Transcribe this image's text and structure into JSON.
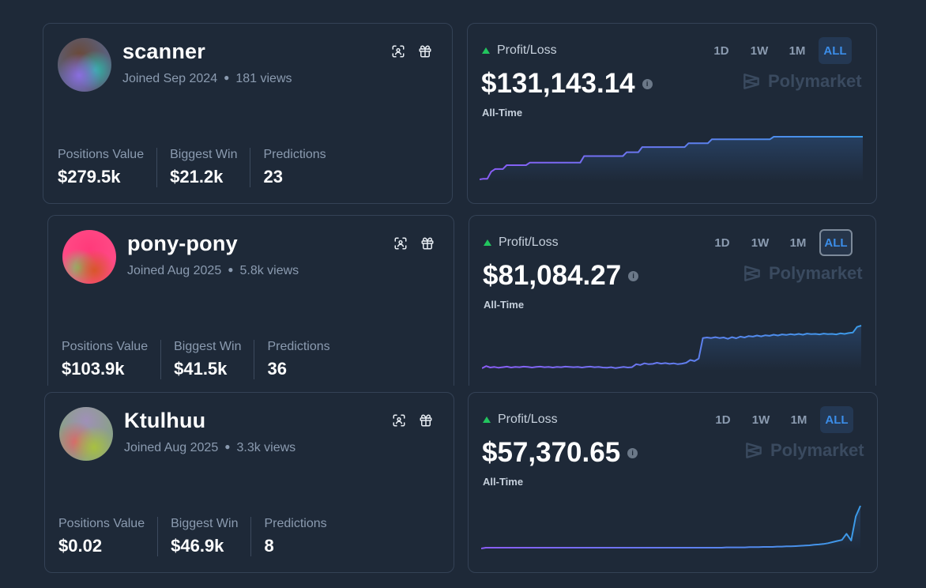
{
  "colors": {
    "background": "#1e2938",
    "card_border": "#344256",
    "muted_text": "#8b9bb0",
    "profit_up": "#22c55e",
    "active_tab": "#3b8de8",
    "line_start": "#8b5cf6",
    "line_end": "#3b9be8"
  },
  "icons": {
    "scan": "qr-scan-icon",
    "gift": "gift-icon",
    "up": "triangle-up-icon",
    "info": "info-icon",
    "brand": "polymarket-logo-icon"
  },
  "profiles": [
    {
      "username": "scanner",
      "joined": "Joined Sep 2024",
      "views": "181 views",
      "stats": [
        {
          "label": "Positions Value",
          "value": "$279.5k"
        },
        {
          "label": "Biggest Win",
          "value": "$21.2k"
        },
        {
          "label": "Predictions",
          "value": "23"
        }
      ],
      "pnl": {
        "label": "Profit/Loss",
        "amount": "$131,143.14",
        "range": "All-Time",
        "brand": "Polymarket",
        "timeframes": [
          "1D",
          "1W",
          "1M",
          "ALL"
        ],
        "active_timeframe": "ALL"
      }
    },
    {
      "username": "pony-pony",
      "joined": "Joined Aug 2025",
      "views": "5.8k views",
      "stats": [
        {
          "label": "Positions Value",
          "value": "$103.9k"
        },
        {
          "label": "Biggest Win",
          "value": "$41.5k"
        },
        {
          "label": "Predictions",
          "value": "36"
        }
      ],
      "pnl": {
        "label": "Profit/Loss",
        "amount": "$81,084.27",
        "range": "All-Time",
        "brand": "Polymarket",
        "timeframes": [
          "1D",
          "1W",
          "1M",
          "ALL"
        ],
        "active_timeframe": "ALL"
      }
    },
    {
      "username": "Ktulhuu",
      "joined": "Joined Aug 2025",
      "views": "3.3k views",
      "stats": [
        {
          "label": "Positions Value",
          "value": "$0.02"
        },
        {
          "label": "Biggest Win",
          "value": "$46.9k"
        },
        {
          "label": "Predictions",
          "value": "8"
        }
      ],
      "pnl": {
        "label": "Profit/Loss",
        "amount": "$57,370.65",
        "range": "All-Time",
        "brand": "Polymarket",
        "timeframes": [
          "1D",
          "1W",
          "1M",
          "ALL"
        ],
        "active_timeframe": "ALL"
      }
    }
  ],
  "chart_data": [
    {
      "type": "line",
      "series": [
        {
          "values": [
            0,
            0.5,
            0.5,
            6,
            8,
            8,
            8,
            11,
            11,
            11,
            11,
            11,
            11,
            13,
            13,
            13,
            13,
            13,
            13,
            13,
            13,
            13,
            13,
            13,
            13,
            13,
            13,
            18,
            18,
            18,
            18,
            18,
            18,
            18,
            18,
            18,
            18,
            18,
            21,
            21,
            21,
            21,
            25,
            25,
            25,
            25,
            25,
            25,
            25,
            25,
            25,
            25,
            25,
            25,
            28,
            28,
            28,
            28,
            28,
            28,
            31,
            31,
            31,
            31,
            31,
            31,
            31,
            31,
            31,
            31,
            31,
            31,
            31,
            31,
            31,
            31,
            33,
            33,
            33,
            33,
            33,
            33,
            33,
            33,
            33,
            33,
            33,
            33,
            33,
            33,
            33,
            33,
            33,
            33,
            33,
            33,
            33,
            33,
            33,
            33
          ]
        }
      ]
    },
    {
      "type": "line",
      "series": [
        {
          "values": [
            0,
            0.8,
            0.3,
            0.5,
            0.2,
            0.4,
            0.6,
            0.3,
            0.5,
            0.4,
            0.6,
            0.5,
            0.3,
            0.5,
            0.6,
            0.4,
            0.5,
            0.3,
            0.5,
            0.4,
            0.6,
            0.5,
            0.4,
            0.5,
            0.3,
            0.5,
            0.6,
            0.4,
            0.5,
            0.3,
            0.2,
            0.4,
            0.1,
            0.3,
            0.5,
            0.3,
            0.4,
            1.5,
            1.2,
            1.8,
            1.5,
            1.6,
            2,
            1.7,
            1.9,
            1.6,
            1.8,
            1.5,
            1.7,
            2,
            3,
            2.6,
            3.5,
            11,
            11.2,
            11,
            11.3,
            11,
            11.2,
            10.7,
            11.3,
            10.9,
            11.5,
            11.2,
            11.7,
            11.5,
            11.9,
            11.6,
            12,
            11.8,
            12.2,
            11.9,
            12.3,
            12.1,
            12.4,
            12.2,
            12.5,
            12.2,
            12.6,
            12.4,
            12.5,
            12.3,
            12.6,
            12.4,
            12.5,
            12.3,
            12.7,
            12.5,
            12.8,
            13,
            15,
            15.5
          ]
        }
      ]
    },
    {
      "type": "line",
      "series": [
        {
          "values": [
            0,
            0.3,
            0.3,
            0.3,
            0.3,
            0.3,
            0.3,
            0.3,
            0.3,
            0.3,
            0.3,
            0.3,
            0.3,
            0.3,
            0.3,
            0.3,
            0.3,
            0.3,
            0.3,
            0.3,
            0.3,
            0.3,
            0.3,
            0.3,
            0.3,
            0.3,
            0.3,
            0.3,
            0.3,
            0.3,
            0.3,
            0.3,
            0.3,
            0.3,
            0.3,
            0.3,
            0.3,
            0.3,
            0.3,
            0.3,
            0.3,
            0.3,
            0.3,
            0.3,
            0.3,
            0.3,
            0.3,
            0.3,
            0.3,
            0.3,
            0.3,
            0.3,
            0.3,
            0.4,
            0.4,
            0.4,
            0.4,
            0.4,
            0.5,
            0.5,
            0.5,
            0.6,
            0.6,
            0.6,
            0.7,
            0.7,
            0.8,
            0.8,
            0.9,
            1,
            1.1,
            1.2,
            1.4,
            1.5,
            1.7,
            2,
            2.4,
            2.8,
            3.2,
            5.5,
            3,
            12,
            16
          ]
        }
      ]
    }
  ]
}
